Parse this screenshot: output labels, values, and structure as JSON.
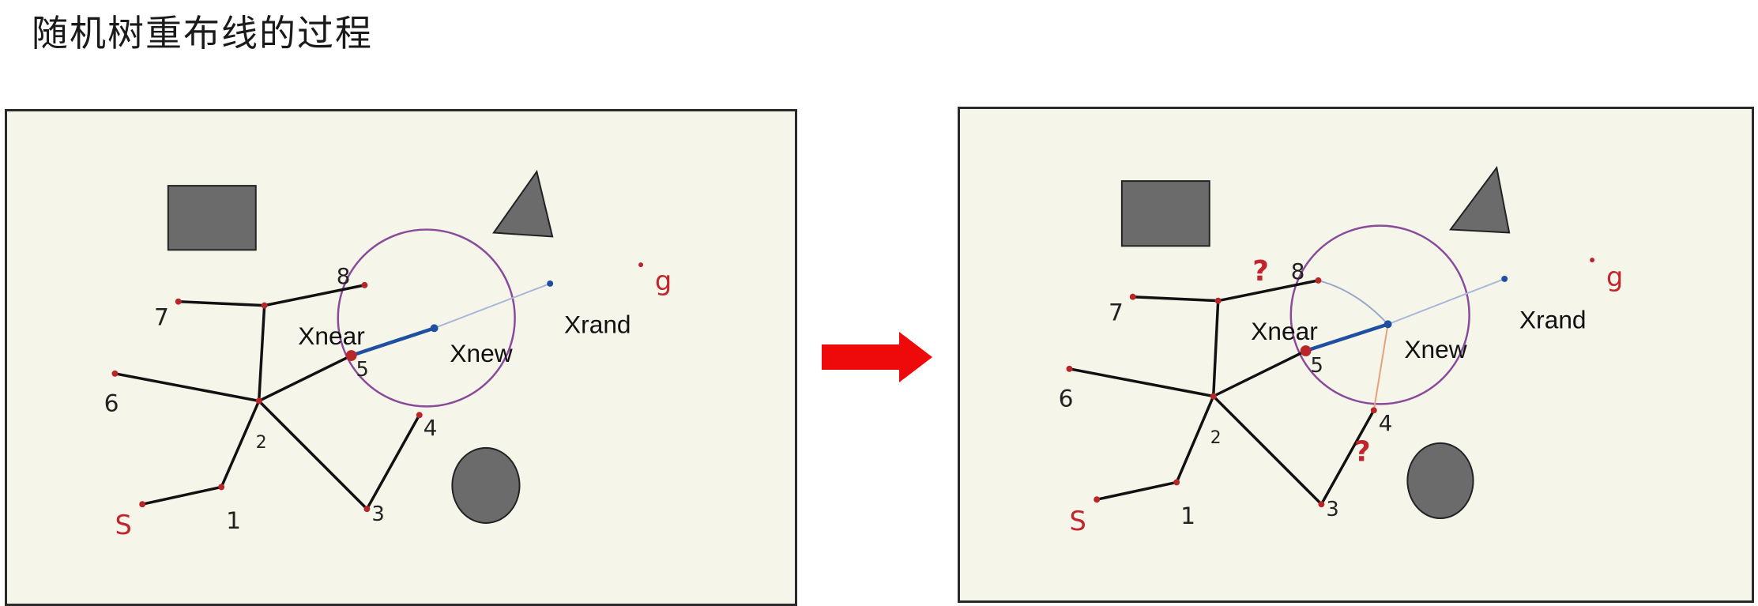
{
  "title": "随机树重布线的过程",
  "colors": {
    "panel_bg": "#f5f5ea",
    "obstacle": "#6b6b6b",
    "tree_edge": "#111111",
    "node": "#b8262a",
    "new_edge": "#1e4fa0",
    "circle": "#8a4a9a",
    "arrow": "#ee0a0a",
    "candidate_edge_8": "#9aa8c8",
    "candidate_edge_4": "#e8a07a"
  },
  "left_panel": {
    "labels": {
      "xnear": "Xnear",
      "xnew": "Xnew",
      "xrand": "Xrand",
      "start": "S",
      "goal": "g",
      "n1": "1",
      "n2": "2",
      "n3": "3",
      "n4": "4",
      "n5": "5",
      "n6": "6",
      "n7": "7",
      "n8": "8"
    }
  },
  "right_panel": {
    "labels": {
      "xnear": "Xnear",
      "xnew": "Xnew",
      "xrand": "Xrand",
      "start": "S",
      "goal": "g",
      "n1": "1",
      "n2": "2",
      "n3": "3",
      "n4": "4",
      "n5": "5",
      "n6": "6",
      "n7": "7",
      "n8": "8",
      "question_top": "?",
      "question_bottom": "?"
    }
  },
  "arrow": {
    "icon": "right-arrow-icon"
  }
}
